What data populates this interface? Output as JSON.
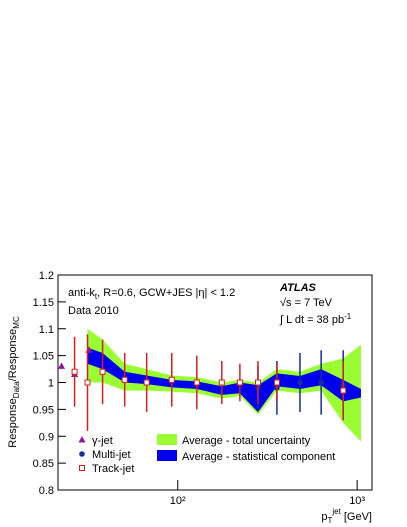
{
  "chart_data": {
    "type": "scatter",
    "annotations": {
      "line1_a": "anti-k",
      "line1_sub": "t",
      "line1_b": ", R=0.6, GCW+JES  |η| < 1.2",
      "line2": "Data 2010",
      "experiment": "ATLAS",
      "energy": "√s = 7 TeV",
      "lumi_a": "∫ L dt = 38 pb",
      "lumi_sup": "-1"
    },
    "y_label": {
      "a": "Response",
      "a_sub": "Data",
      "b": "/Response",
      "b_sub": "MC"
    },
    "x_label": {
      "a": "p",
      "a_sub": "T",
      "a_sup": "jet",
      "b": " [GeV]"
    },
    "log_x": true,
    "xlim": [
      21.5,
      1210
    ],
    "xticks": [
      {
        "value": 100,
        "label": "10²"
      },
      {
        "value": 1000,
        "label": "10³"
      }
    ],
    "ylim": [
      0.8,
      1.2
    ],
    "yticks": [
      0.8,
      0.85,
      0.9,
      0.95,
      1,
      1.05,
      1.1,
      1.15,
      1.2
    ],
    "bands": {
      "x": [
        31.4,
        38.1,
        50.6,
        67.1,
        92.6,
        127.7,
        176,
        222,
        280,
        357,
        480,
        630,
        836,
        1050
      ],
      "center": [
        1.05,
        1.04,
        1.01,
        1.005,
        0.998,
        0.995,
        0.985,
        0.99,
        0.97,
        1.005,
        1.0,
        1.01,
        0.985,
        0.98
      ],
      "total": {
        "name": "Average - total uncertainty",
        "color": "#99ff33",
        "halfwidth": [
          0.05,
          0.04,
          0.025,
          0.02,
          0.015,
          0.015,
          0.015,
          0.015,
          0.03,
          0.02,
          0.02,
          0.025,
          0.06,
          0.09
        ]
      },
      "stat": {
        "name": "Average - statistical component",
        "color": "#0000ee",
        "halfwidth": [
          0.015,
          0.015,
          0.01,
          0.008,
          0.007,
          0.007,
          0.008,
          0.01,
          0.025,
          0.012,
          0.012,
          0.015,
          0.02,
          0.008
        ]
      }
    },
    "series": [
      {
        "name": "γ-jet",
        "color": "#8a1a9a",
        "marker": "triangle",
        "x": [
          22.5,
          26.6,
          32
        ],
        "values": [
          1.03,
          1.015,
          1.06
        ]
      },
      {
        "name": "Multi-jet",
        "color": "#1a2aa0",
        "marker": "circle",
        "x": [
          280,
          357,
          480,
          630,
          836
        ],
        "values": [
          0.99,
          0.99,
          1.0,
          1.0,
          0.995
        ],
        "errors": [
          0.04,
          0.05,
          0.055,
          0.06,
          0.065
        ]
      },
      {
        "name": "Track-jet",
        "color": "#d62020",
        "marker": "open-square",
        "x": [
          26.6,
          31.4,
          38.1,
          50.6,
          67.1,
          92.6,
          127.7,
          176,
          222,
          280,
          357,
          836
        ],
        "values": [
          1.02,
          1.0,
          1.02,
          1.005,
          1.0,
          1.005,
          1.0,
          1.0,
          1.0,
          1.0,
          1.0,
          0.985
        ],
        "errors": [
          0.065,
          0.09,
          0.06,
          0.05,
          0.055,
          0.05,
          0.05,
          0.04,
          0.035,
          0.04,
          0.035,
          0.055
        ]
      }
    ]
  }
}
